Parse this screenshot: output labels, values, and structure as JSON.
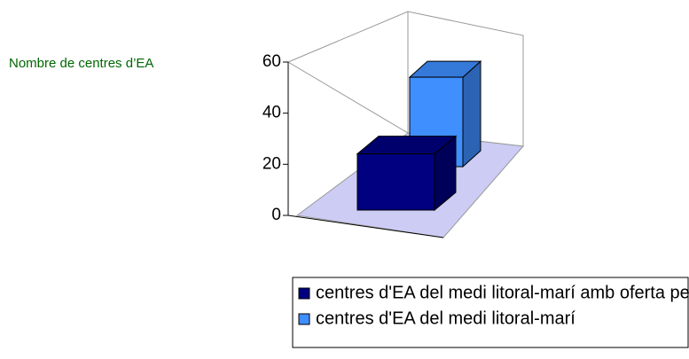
{
  "chart_data": {
    "type": "bar3d",
    "ylabel": "Nombre de centres d’EA",
    "categories": [
      null
    ],
    "series": [
      {
        "name": "centres d'EA del medi litoral-marí amb oferta per a batxillerat",
        "color": "#000080",
        "values": [
          22
        ]
      },
      {
        "name": "centres d'EA del medi litoral-marí",
        "color": "#3f8fff",
        "values": [
          35
        ]
      }
    ],
    "ylim": [
      0,
      60
    ],
    "yticks": [
      0,
      20,
      40,
      60
    ]
  }
}
